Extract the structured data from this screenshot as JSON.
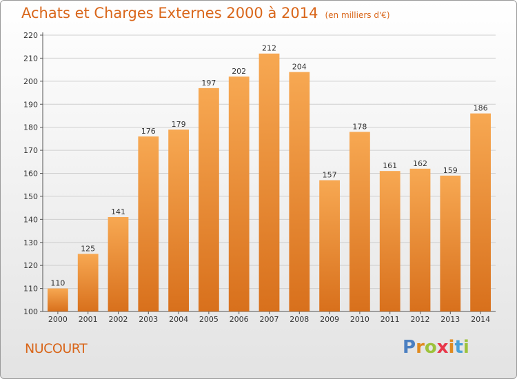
{
  "header": {
    "title": "Achats et Charges Externes 2000 à 2014",
    "subtitle": "(en milliers d'€)"
  },
  "footer": {
    "commune": "NUCOURT",
    "logo_text": "Proxiti",
    "logo_colors": [
      "#4a7fc1",
      "#e08a1e",
      "#9dc23b",
      "#e8374a",
      "#e08a1e",
      "#4aa0d6",
      "#9dc23b"
    ]
  },
  "colors": {
    "accent": "#d9661a",
    "bar_light": "#f7a852",
    "bar_dark": "#d8701c"
  },
  "chart_data": {
    "type": "bar",
    "categories": [
      "2000",
      "2001",
      "2002",
      "2003",
      "2004",
      "2005",
      "2006",
      "2007",
      "2008",
      "2009",
      "2010",
      "2011",
      "2012",
      "2013",
      "2014"
    ],
    "values": [
      110,
      125,
      141,
      176,
      179,
      197,
      202,
      212,
      204,
      157,
      178,
      161,
      162,
      159,
      186
    ],
    "ylim": [
      100,
      220
    ],
    "yticks": [
      100,
      110,
      120,
      130,
      140,
      150,
      160,
      170,
      180,
      190,
      200,
      210,
      220
    ],
    "grid": true
  }
}
